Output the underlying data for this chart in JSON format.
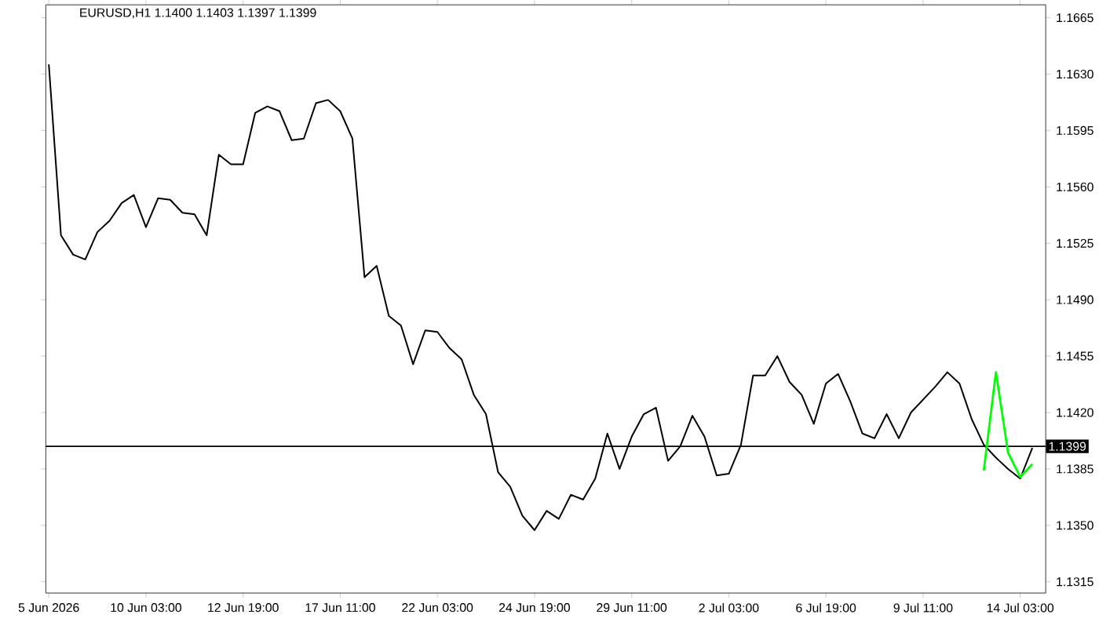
{
  "chart_data": {
    "type": "line",
    "title": "EURUSD,H1  1.1400 1.1403 1.1397 1.1399",
    "categories": [
      "5 Jun 2026",
      null,
      null,
      null,
      null,
      null,
      null,
      null,
      "10 Jun 03:00",
      null,
      null,
      null,
      null,
      null,
      null,
      null,
      "12 Jun 19:00",
      null,
      null,
      null,
      null,
      null,
      null,
      null,
      "17 Jun 11:00",
      null,
      null,
      null,
      null,
      null,
      null,
      null,
      "22 Jun 03:00",
      null,
      null,
      null,
      null,
      null,
      null,
      null,
      "24 Jun 19:00",
      null,
      null,
      null,
      null,
      null,
      null,
      null,
      "29 Jun 11:00",
      null,
      null,
      null,
      null,
      null,
      null,
      null,
      "2 Jul 03:00",
      null,
      null,
      null,
      null,
      null,
      null,
      null,
      "6 Jul 19:00",
      null,
      null,
      null,
      null,
      null,
      null,
      null,
      "9 Jul 11:00",
      null,
      null,
      null,
      null,
      null,
      null,
      null,
      "14 Jul 03:00",
      null
    ],
    "ylim": [
      1.1308,
      1.1673
    ],
    "yticks": [
      1.1315,
      {
        "value": 1.135,
        "label": "1.1350"
      },
      1.1385,
      {
        "value": 1.142,
        "label": "1.1420"
      },
      1.1455,
      {
        "value": 1.149,
        "label": "1.1490"
      },
      1.1525,
      {
        "value": 1.156,
        "label": "1.1560"
      },
      1.1595,
      {
        "value": 1.163,
        "label": "1.1630"
      },
      1.1665
    ],
    "marker": "none",
    "line_style": "solid",
    "ref_lines": [
      {
        "axis": "y",
        "value": 1.1399,
        "label": "1.1399",
        "color": "#000000"
      }
    ],
    "series": [
      {
        "color": "#000000",
        "values": [
          1.1636,
          1.153,
          1.1518,
          1.1515,
          1.1532,
          1.1539,
          1.155,
          1.1555,
          1.1535,
          1.1553,
          1.1552,
          1.1544,
          1.1543,
          1.153,
          1.158,
          1.1574,
          1.1574,
          1.1606,
          1.161,
          1.1607,
          1.1589,
          1.159,
          1.1612,
          1.1614,
          1.1607,
          1.159,
          1.1504,
          1.1511,
          1.148,
          1.1474,
          1.145,
          1.1471,
          1.147,
          1.146,
          1.1453,
          1.1431,
          1.1419,
          1.1383,
          1.1374,
          1.1356,
          1.1347,
          1.1359,
          1.1354,
          1.1369,
          1.1366,
          1.1379,
          1.1407,
          1.1385,
          1.1405,
          1.1419,
          1.1423,
          1.139,
          1.1399,
          1.1418,
          1.1405,
          1.1381,
          1.1382,
          1.14,
          1.1443,
          1.1443,
          1.1455,
          1.1439,
          1.1431,
          1.1413,
          1.1438,
          1.1444,
          1.1427,
          1.1407,
          1.1404,
          1.1419,
          1.1404,
          1.142,
          1.1428,
          1.1436,
          1.1445,
          1.1438,
          1.1416,
          1.14,
          1.1392,
          1.1385,
          1.1379,
          1.1398
        ]
      },
      {
        "color": "#00ff00",
        "values": [
          null,
          null,
          null,
          null,
          null,
          null,
          null,
          null,
          null,
          null,
          null,
          null,
          null,
          null,
          null,
          null,
          null,
          null,
          null,
          null,
          null,
          null,
          null,
          null,
          null,
          null,
          null,
          null,
          null,
          null,
          null,
          null,
          null,
          null,
          null,
          null,
          null,
          null,
          null,
          null,
          null,
          null,
          null,
          null,
          null,
          null,
          null,
          null,
          null,
          null,
          null,
          null,
          null,
          null,
          null,
          null,
          null,
          null,
          null,
          null,
          null,
          null,
          null,
          null,
          null,
          null,
          null,
          null,
          null,
          null,
          null,
          null,
          null,
          null,
          null,
          null,
          null,
          1.1384,
          1.1445,
          1.1395,
          1.138,
          1.1388
        ]
      }
    ]
  }
}
